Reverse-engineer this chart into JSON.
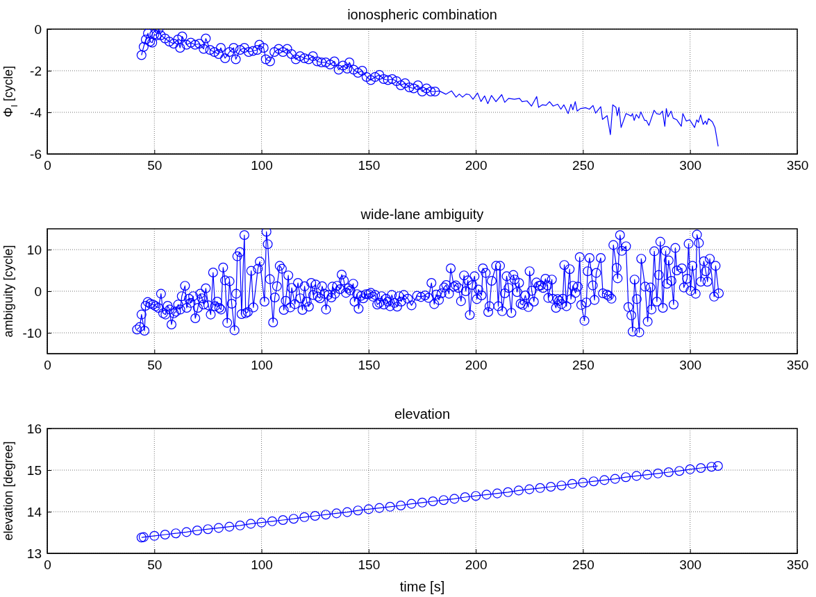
{
  "chart_data": [
    {
      "type": "line",
      "title": "ionospheric combination",
      "ylabel": "Φ$_{I}$ [cycle]",
      "xlim": [
        0,
        350
      ],
      "xticks": [
        0,
        50,
        100,
        150,
        200,
        250,
        300,
        350
      ],
      "ylim": [
        -6,
        0
      ],
      "yticks": [
        -6,
        -4,
        -2,
        0
      ],
      "grid": true,
      "marker": "circle",
      "line_style": "solid",
      "series": [
        {
          "color": "#0000ff",
          "x": [
            44,
            45,
            46,
            47,
            48,
            49,
            50,
            51,
            52,
            53,
            55,
            57,
            59,
            61,
            62,
            63,
            65,
            67,
            69,
            71,
            73,
            74,
            76,
            78,
            80,
            81,
            83,
            85,
            87,
            88,
            90,
            92,
            94,
            96,
            98,
            99,
            101,
            102,
            104,
            106,
            108,
            110,
            112,
            114,
            116,
            118,
            120,
            122,
            124,
            126,
            128,
            130,
            132,
            134,
            136,
            138,
            140,
            141,
            143,
            145,
            147,
            149,
            151,
            153,
            155,
            157,
            159,
            161,
            163,
            165,
            167,
            169,
            171,
            173,
            175,
            177,
            179,
            181
          ],
          "values": [
            -1.25,
            -0.85,
            -0.5,
            -0.2,
            -0.6,
            -0.65,
            -0.25,
            -0.3,
            0,
            -0.3,
            -0.45,
            -0.6,
            -0.7,
            -0.5,
            -0.9,
            -0.35,
            -0.75,
            -0.65,
            -0.75,
            -0.7,
            -0.95,
            -0.45,
            -1.0,
            -1.1,
            -1.2,
            -0.9,
            -1.4,
            -1.1,
            -0.9,
            -1.45,
            -1.0,
            -0.9,
            -1.1,
            -1.05,
            -1.0,
            -0.75,
            -0.9,
            -1.45,
            -1.55,
            -1.1,
            -0.95,
            -1.1,
            -0.95,
            -1.2,
            -1.45,
            -1.3,
            -1.4,
            -1.45,
            -1.3,
            -1.55,
            -1.6,
            -1.6,
            -1.7,
            -1.55,
            -1.95,
            -1.75,
            -1.9,
            -1.6,
            -1.95,
            -2.1,
            -2.0,
            -2.3,
            -2.45,
            -2.3,
            -2.2,
            -2.4,
            -2.45,
            -2.4,
            -2.5,
            -2.7,
            -2.6,
            -2.8,
            -2.85,
            -2.7,
            -3.0,
            -2.85,
            -3.0,
            -3.0
          ]
        },
        {
          "color": "#0000ff",
          "marker": "none",
          "x": [
            181,
            183,
            186,
            188.7,
            190.8,
            192.3,
            193.8,
            195.5,
            197,
            198.7,
            200.8,
            202.4,
            204.1,
            205.6,
            207.3,
            209.4,
            212.1,
            213.5,
            215.3,
            218,
            220.4,
            221.6,
            223.9,
            226,
            228.4,
            229.3,
            231,
            232.8,
            234.4,
            236.1,
            238.2,
            239.7,
            241.1,
            243.1,
            244.4,
            245.3,
            246.4,
            247.3,
            248.8,
            251.2,
            253,
            254.7,
            255.9,
            258.3,
            259.1,
            261.3,
            262.8,
            263.9,
            265.4,
            266,
            266.8,
            267.8,
            270.1,
            272.5,
            273.1,
            273.9,
            274.9,
            276.1,
            277,
            278.8,
            279.6,
            280.8,
            283.2,
            284.4,
            285.9,
            287.1,
            288.2,
            288.9,
            289.7,
            291.1,
            292.1,
            293.8,
            295.9,
            296.6,
            298.2,
            299.8,
            302.1,
            303.1,
            303.9,
            304.9,
            306.1,
            307.1,
            307.8,
            308.6,
            310.4,
            311.6,
            313.1
          ],
          "values": [
            -3.0,
            -2.97,
            -3.13,
            -2.97,
            -3.27,
            -3.12,
            -3.27,
            -3.12,
            -3.15,
            -3.37,
            -3.07,
            -3.48,
            -3.21,
            -3.58,
            -3.19,
            -3.49,
            -3.15,
            -3.52,
            -3.33,
            -3.37,
            -3.33,
            -3.49,
            -3.45,
            -3.7,
            -3.24,
            -3.76,
            -3.64,
            -3.66,
            -3.49,
            -3.7,
            -3.61,
            -3.85,
            -3.64,
            -4.06,
            -3.61,
            -3.88,
            -3.49,
            -3.94,
            -3.82,
            -3.78,
            -3.85,
            -3.67,
            -4.04,
            -3.73,
            -4.34,
            -4.16,
            -5.07,
            -3.64,
            -3.76,
            -4.16,
            -3.76,
            -4.73,
            -4.06,
            -4.18,
            -4.06,
            -4.39,
            -4.1,
            -4.28,
            -3.98,
            -4.39,
            -4.39,
            -4.63,
            -3.9,
            -4.06,
            -4.1,
            -3.94,
            -4.67,
            -3.82,
            -4.22,
            -3.94,
            -4.28,
            -4.36,
            -4.67,
            -4.06,
            -4.42,
            -4.36,
            -4.73,
            -4.36,
            -4.48,
            -4.12,
            -4.58,
            -4.42,
            -4.58,
            -4.3,
            -4.46,
            -4.73,
            -5.64
          ]
        }
      ]
    },
    {
      "type": "line",
      "title": "wide-lane ambiguity",
      "ylabel": "ambiguity [cycle]",
      "xlim": [
        0,
        350
      ],
      "xticks": [
        0,
        50,
        100,
        150,
        200,
        250,
        300,
        350
      ],
      "ylim": [
        -15,
        15
      ],
      "yticks": [
        -10,
        0,
        10
      ],
      "grid": true,
      "marker": "circle",
      "line_style": "solid",
      "series": [
        {
          "color": "#0000ff",
          "x": [
            41.9,
            43.2,
            44,
            45.4,
            45.9,
            46.9,
            48.1,
            49.4,
            50.6,
            51.9,
            53.1,
            54.1,
            55.2,
            56.2,
            57.1,
            58,
            59.1,
            60.1,
            61.1,
            62.1,
            62.8,
            64.3,
            65.1,
            66.1,
            66.9,
            68.1,
            69.1,
            70.3,
            71.4,
            72.2,
            73,
            74,
            75.2,
            76.3,
            77.4,
            78.3,
            79.3,
            80.3,
            81.1,
            82.1,
            83,
            84,
            85.1,
            86.1,
            87.4,
            88.2,
            88.7,
            89.9,
            90.7,
            92,
            92.6,
            93.6,
            95.2,
            96.2,
            98.3,
            99.2,
            101.4,
            102.3,
            102.9,
            103.9,
            105.4,
            106.2,
            107.2,
            108.5,
            109.5,
            110.4,
            111.3,
            112.5,
            113.4,
            114.1,
            115.6,
            117,
            118.1,
            119.1,
            120.1,
            121.1,
            122.1,
            123.2,
            124.1,
            125.3,
            126.3,
            127.3,
            128.3,
            129.3,
            130.1,
            131.1,
            132.6,
            133.1,
            134.3,
            135.3,
            136.6,
            137.4,
            138.4,
            139.4,
            140.5,
            141.5,
            142.8,
            143.4,
            144.6,
            145.3,
            146.5,
            147.5,
            148.8,
            150,
            151,
            152,
            153,
            154,
            155,
            156,
            157.1,
            158.1,
            159,
            160,
            160.8,
            162.1,
            163.3,
            164.2,
            165.2,
            166.4,
            168.3,
            170,
            172.6,
            174.4,
            176.3,
            177.9,
            179.3,
            180.6,
            181.5,
            182.8,
            184,
            185.2,
            186.2,
            187.5,
            188.3,
            189.8,
            190.7,
            191.9,
            193.1,
            194.5,
            195.3,
            196.3,
            197.2,
            198.4,
            199.4,
            200.5,
            201.2,
            202.7,
            203.3,
            204.6,
            205.8,
            206.4,
            207.4,
            209.5,
            210.5,
            211.3,
            212.3,
            213.5,
            214.4,
            215.3,
            216.6,
            217.5,
            218.1,
            219.3,
            220.2,
            220.9,
            221.9,
            223.1,
            224.5,
            225.1,
            226.1,
            227.1,
            228.3,
            229.4,
            230.4,
            231.4,
            232.5,
            233.5,
            233.8,
            235.5,
            235.9,
            237.4,
            238.1,
            238.9,
            240,
            240.6,
            241.3,
            242.3,
            243.8,
            244.4,
            245.3,
            246.5,
            247.6,
            248.5,
            249.2,
            250.7,
            251.6,
            252.2,
            253.1,
            254.6,
            255.4,
            256.2,
            258.3,
            259.3,
            261.1,
            262.1,
            263.3,
            264.2,
            265.7,
            266.2,
            267.3,
            268.1,
            270.1,
            271.2,
            272.6,
            273.2,
            274.1,
            275.1,
            276.3,
            277.2,
            279,
            280.2,
            281.5,
            282,
            283.3,
            284.5,
            285.4,
            286.1,
            287.3,
            288.6,
            289.2,
            290,
            291.3,
            292.3,
            293.1,
            293.8,
            296.2,
            297.1,
            298.6,
            299.3,
            300.2,
            301.1,
            302.6,
            303.2,
            304.1,
            305,
            306.4,
            307.3,
            308.1,
            309.2,
            311.2,
            311.9,
            313.4
          ],
          "values": [
            -9.2,
            -8.6,
            -5.6,
            -9.5,
            -3.5,
            -2.6,
            -3.0,
            -3.2,
            -3.6,
            -4.0,
            -0.6,
            -5.3,
            -5.6,
            -3.5,
            -4.4,
            -8.0,
            -5.3,
            -4.9,
            -3.2,
            -4.4,
            -1.2,
            1.3,
            -4.0,
            -1.8,
            -2.8,
            -1.2,
            -6.5,
            -4.0,
            -0.6,
            -1.7,
            -3.2,
            0.7,
            -3.4,
            -5.6,
            4.5,
            -3.6,
            -2.5,
            -4.0,
            -4.4,
            5.7,
            2.6,
            -7.6,
            2.4,
            -3.0,
            -9.4,
            -0.6,
            8.4,
            9.4,
            -5.5,
            13.5,
            -5.3,
            -5.0,
            4.9,
            -3.9,
            5.4,
            7.1,
            -2.5,
            14.3,
            11.3,
            2.9,
            -7.5,
            -1.5,
            1.2,
            6.1,
            5.4,
            -4.5,
            -2.3,
            3.8,
            -3.9,
            0.8,
            -3.1,
            2.0,
            -1.7,
            -4.5,
            1.2,
            -2.5,
            -3.7,
            2.0,
            -0.9,
            1.6,
            -1.3,
            -1.7,
            1.2,
            -0.6,
            -4.4,
            -0.9,
            -1.5,
            1.1,
            -0.6,
            1.3,
            0.5,
            4.0,
            2.6,
            -0.4,
            0.7,
            0.2,
            1.8,
            -2.5,
            -0.7,
            -4.2,
            -1.1,
            -1.7,
            -0.7,
            -0.7,
            -0.4,
            -1.3,
            -0.9,
            -3.2,
            -2.8,
            -1.2,
            -3.2,
            -1.8,
            -2.5,
            -3.6,
            -0.9,
            -2.8,
            -3.7,
            -1.2,
            -2.5,
            -0.9,
            -1.8,
            -3.4,
            -1.1,
            -1.4,
            -1.0,
            -1.6,
            2.0,
            -3.1,
            -0.8,
            -2.1,
            -0.5,
            0.9,
            1.5,
            -0.6,
            5.5,
            1.1,
            1.4,
            0.8,
            -2.4,
            3.8,
            0,
            2.6,
            -5.7,
            1.5,
            3.6,
            -1.9,
            0.4,
            -1.0,
            5.5,
            4.4,
            -5.0,
            -3.6,
            2.5,
            6.1,
            -3.6,
            6.1,
            -4.8,
            -0.5,
            3.6,
            0.8,
            -5.2,
            3.9,
            2.8,
            -0.2,
            2.0,
            -3.0,
            -3.3,
            -1.0,
            -3.8,
            4.8,
            0.1,
            -2.5,
            2.1,
            1.3,
            1.4,
            0.8,
            3.0,
            1.4,
            -1.6,
            2.8,
            -1.8,
            -4.0,
            -1.9,
            -2.3,
            -3.1,
            -1.8,
            6.3,
            -3.6,
            5.3,
            -1.9,
            1.3,
            -0.4,
            1.1,
            8.2,
            -3.3,
            -7.1,
            -2.7,
            4.8,
            8.0,
            1.4,
            -2.1,
            4.4,
            8.0,
            -0.5,
            -0.8,
            -1.1,
            -1.8,
            11.1,
            5.6,
            3.1,
            13.5,
            9.7,
            10.8,
            -3.8,
            -5.8,
            -9.7,
            2.8,
            -1.9,
            -9.9,
            7.8,
            1.1,
            -7.3,
            0.9,
            -4.4,
            9.6,
            -2.5,
            3.9,
            11.9,
            -4.0,
            9.7,
            1.8,
            7.4,
            2.5,
            -3.2,
            10.4,
            5.0,
            5.5,
            0.9,
            3.0,
            11.4,
            0.1,
            6.1,
            -0.6,
            13.6,
            11.6,
            2.3,
            7.2,
            4.8,
            2.3,
            7.8,
            -1.3,
            6.1,
            -0.5
          ]
        }
      ]
    },
    {
      "type": "line",
      "title": "elevation",
      "xlabel": "time [s]",
      "ylabel": "elevation [degree]",
      "xlim": [
        0,
        350
      ],
      "xticks": [
        0,
        50,
        100,
        150,
        200,
        250,
        300,
        350
      ],
      "ylim": [
        13,
        16
      ],
      "yticks": [
        13,
        14,
        15,
        16
      ],
      "grid": true,
      "marker": "circle",
      "line_style": "solid",
      "series": [
        {
          "color": "#0000ff",
          "x": [
            44,
            45,
            50,
            55,
            60,
            65,
            70,
            75,
            80,
            85,
            90,
            95,
            100,
            105,
            110,
            115,
            120,
            125,
            130,
            135,
            140,
            145,
            150,
            155,
            160,
            165,
            170,
            175,
            180,
            185,
            190,
            195,
            200,
            205,
            210,
            215,
            220,
            225,
            230,
            235,
            240,
            245,
            250,
            255,
            260,
            265,
            270,
            275,
            280,
            285,
            290,
            295,
            300,
            305,
            310,
            313
          ],
          "values": [
            13.38,
            13.39,
            13.42,
            13.45,
            13.48,
            13.51,
            13.55,
            13.58,
            13.61,
            13.64,
            13.67,
            13.71,
            13.74,
            13.77,
            13.8,
            13.83,
            13.87,
            13.9,
            13.93,
            13.96,
            13.99,
            14.03,
            14.06,
            14.09,
            14.12,
            14.15,
            14.19,
            14.22,
            14.25,
            14.28,
            14.31,
            14.35,
            14.38,
            14.41,
            14.44,
            14.47,
            14.51,
            14.54,
            14.57,
            14.6,
            14.63,
            14.67,
            14.7,
            14.73,
            14.76,
            14.79,
            14.83,
            14.86,
            14.89,
            14.92,
            14.95,
            14.98,
            15.02,
            15.05,
            15.08,
            15.1
          ]
        }
      ]
    }
  ]
}
